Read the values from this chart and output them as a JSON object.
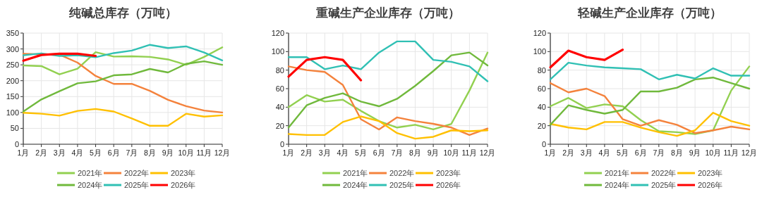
{
  "chart_data": [
    {
      "type": "line",
      "title": "纯碱总库存（万吨）",
      "categories": [
        "1月",
        "2月",
        "3月",
        "4月",
        "5月",
        "6月",
        "7月",
        "8月",
        "9月",
        "10月",
        "11月",
        "12月"
      ],
      "ylim": [
        0,
        350
      ],
      "yticks": [
        0,
        50,
        100,
        150,
        200,
        250,
        300,
        350
      ],
      "grid": true,
      "legend": "bottom",
      "series": [
        {
          "name": "2021年",
          "color": "#92d050",
          "values": [
            248,
            246,
            220,
            238,
            290,
            276,
            277,
            275,
            267,
            250,
            275,
            305
          ]
        },
        {
          "name": "2022年",
          "color": "#f4823c",
          "values": [
            285,
            283,
            282,
            257,
            215,
            190,
            190,
            168,
            140,
            120,
            106,
            100
          ]
        },
        {
          "name": "2023年",
          "color": "#ffc000",
          "values": [
            99,
            96,
            90,
            105,
            111,
            103,
            81,
            58,
            58,
            96,
            87,
            91
          ]
        },
        {
          "name": "2024年",
          "color": "#70b93c",
          "values": [
            103,
            141,
            167,
            192,
            198,
            217,
            220,
            237,
            226,
            253,
            261,
            250
          ]
        },
        {
          "name": "2025年",
          "color": "#30c0b4",
          "values": [
            280,
            286,
            278,
            280,
            274,
            287,
            295,
            313,
            303,
            308,
            289,
            264
          ]
        },
        {
          "name": "2026年",
          "color": "#ff0000",
          "values": [
            263,
            281,
            285,
            285,
            278,
            null,
            null,
            null,
            null,
            null,
            null,
            null
          ]
        }
      ]
    },
    {
      "type": "line",
      "title": "重碱生产企业库存（万吨）",
      "categories": [
        "1月",
        "2月",
        "3月",
        "4月",
        "5月",
        "6月",
        "7月",
        "8月",
        "9月",
        "10月",
        "11月",
        "12月"
      ],
      "ylim": [
        0,
        120
      ],
      "yticks": [
        0,
        20,
        40,
        60,
        80,
        100,
        120
      ],
      "grid": true,
      "legend": "bottom",
      "series": [
        {
          "name": "2021年",
          "color": "#92d050",
          "values": [
            40,
            53,
            46,
            48,
            36,
            25,
            18,
            21,
            16,
            22,
            58,
            99
          ]
        },
        {
          "name": "2022年",
          "color": "#f4823c",
          "values": [
            84,
            80,
            78,
            64,
            27,
            16,
            29,
            25,
            22,
            18,
            10,
            17
          ]
        },
        {
          "name": "2023年",
          "color": "#ffc000",
          "values": [
            11,
            10,
            10,
            24,
            30,
            25,
            12,
            6,
            8,
            15,
            14,
            15
          ]
        },
        {
          "name": "2024年",
          "color": "#70b93c",
          "values": [
            18,
            42,
            50,
            55,
            46,
            41,
            49,
            63,
            79,
            96,
            99,
            85
          ]
        },
        {
          "name": "2025年",
          "color": "#30c0b4",
          "values": [
            94,
            94,
            81,
            85,
            81,
            99,
            111,
            111,
            91,
            89,
            84,
            68
          ]
        },
        {
          "name": "2026年",
          "color": "#ff0000",
          "values": [
            73,
            91,
            94,
            91,
            69,
            null,
            null,
            null,
            null,
            null,
            null,
            null
          ]
        }
      ]
    },
    {
      "type": "line",
      "title": "轻碱生产企业库存（万吨）",
      "categories": [
        "1月",
        "2月",
        "3月",
        "4月",
        "5月",
        "6月",
        "7月",
        "8月",
        "9月",
        "10月",
        "11月",
        "12月"
      ],
      "ylim": [
        0,
        120
      ],
      "yticks": [
        0,
        20,
        40,
        60,
        80,
        100,
        120
      ],
      "grid": true,
      "legend": "bottom",
      "series": [
        {
          "name": "2021年",
          "color": "#92d050",
          "values": [
            41,
            50,
            39,
            43,
            41,
            26,
            14,
            13,
            11,
            15,
            58,
            84
          ]
        },
        {
          "name": "2022年",
          "color": "#f4823c",
          "values": [
            66,
            56,
            60,
            52,
            27,
            20,
            26,
            21,
            12,
            15,
            19,
            16
          ]
        },
        {
          "name": "2023年",
          "color": "#ffc000",
          "values": [
            22,
            18,
            16,
            24,
            24,
            18,
            13,
            9,
            15,
            34,
            25,
            20
          ]
        },
        {
          "name": "2024年",
          "color": "#70b93c",
          "values": [
            21,
            42,
            37,
            33,
            37,
            57,
            57,
            61,
            70,
            72,
            66,
            60
          ]
        },
        {
          "name": "2025年",
          "color": "#30c0b4",
          "values": [
            70,
            88,
            85,
            83,
            82,
            81,
            70,
            75,
            71,
            82,
            74,
            74
          ]
        },
        {
          "name": "2026年",
          "color": "#ff0000",
          "values": [
            83,
            101,
            94,
            91,
            102,
            null,
            null,
            null,
            null,
            null,
            null,
            null
          ]
        }
      ]
    }
  ]
}
